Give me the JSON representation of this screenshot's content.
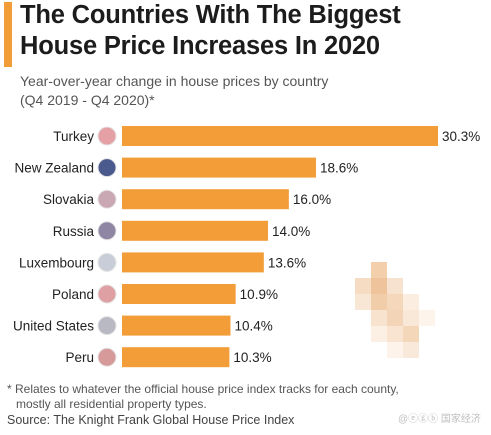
{
  "header": {
    "title_line1": "The Countries With The Biggest",
    "title_line2": "House Price Increases In 2020",
    "subtitle_line1": "Year-over-year change in house prices by country",
    "subtitle_line2": "(Q4 2019 - Q4 2020)*"
  },
  "footer": {
    "footnote_line1": "* Relates to whatever the official house price index tracks for each county,",
    "footnote_line2": "mostly all residential property types.",
    "source": "Source: The Knight Frank Global House Price Index",
    "watermark": "@ⓔⓖⓑ 国家经济"
  },
  "colors": {
    "bar": "#f29d38",
    "accent": "#f29d38"
  },
  "chart_data": {
    "type": "bar",
    "orientation": "horizontal",
    "categories": [
      "Turkey",
      "New Zealand",
      "Slovakia",
      "Russia",
      "Luxembourg",
      "Poland",
      "United States",
      "Peru"
    ],
    "values": [
      30.3,
      18.6,
      16.0,
      14.0,
      13.6,
      10.9,
      10.4,
      10.3
    ],
    "value_labels": [
      "30.3%",
      "18.6%",
      "16.0%",
      "14.0%",
      "13.6%",
      "10.9%",
      "10.4%",
      "10.3%"
    ],
    "flag_icons": [
      "turkey-flag-icon",
      "new-zealand-flag-icon",
      "slovakia-flag-icon",
      "russia-flag-icon",
      "luxembourg-flag-icon",
      "poland-flag-icon",
      "united-states-flag-icon",
      "peru-flag-icon"
    ],
    "flag_colors": [
      "#e5a0a6",
      "#4a5a8c",
      "#c9a7b3",
      "#8f86a3",
      "#c9cdd8",
      "#dfa0a4",
      "#b8b9c2",
      "#d79a9a"
    ],
    "title": "The Countries With The Biggest House Price Increases In 2020",
    "subtitle": "Year-over-year change in house prices by country (Q4 2019 - Q4 2020)*",
    "xlabel": "",
    "ylabel": "",
    "xlim": [
      0,
      30.3
    ],
    "grid": false,
    "legend": "none"
  }
}
